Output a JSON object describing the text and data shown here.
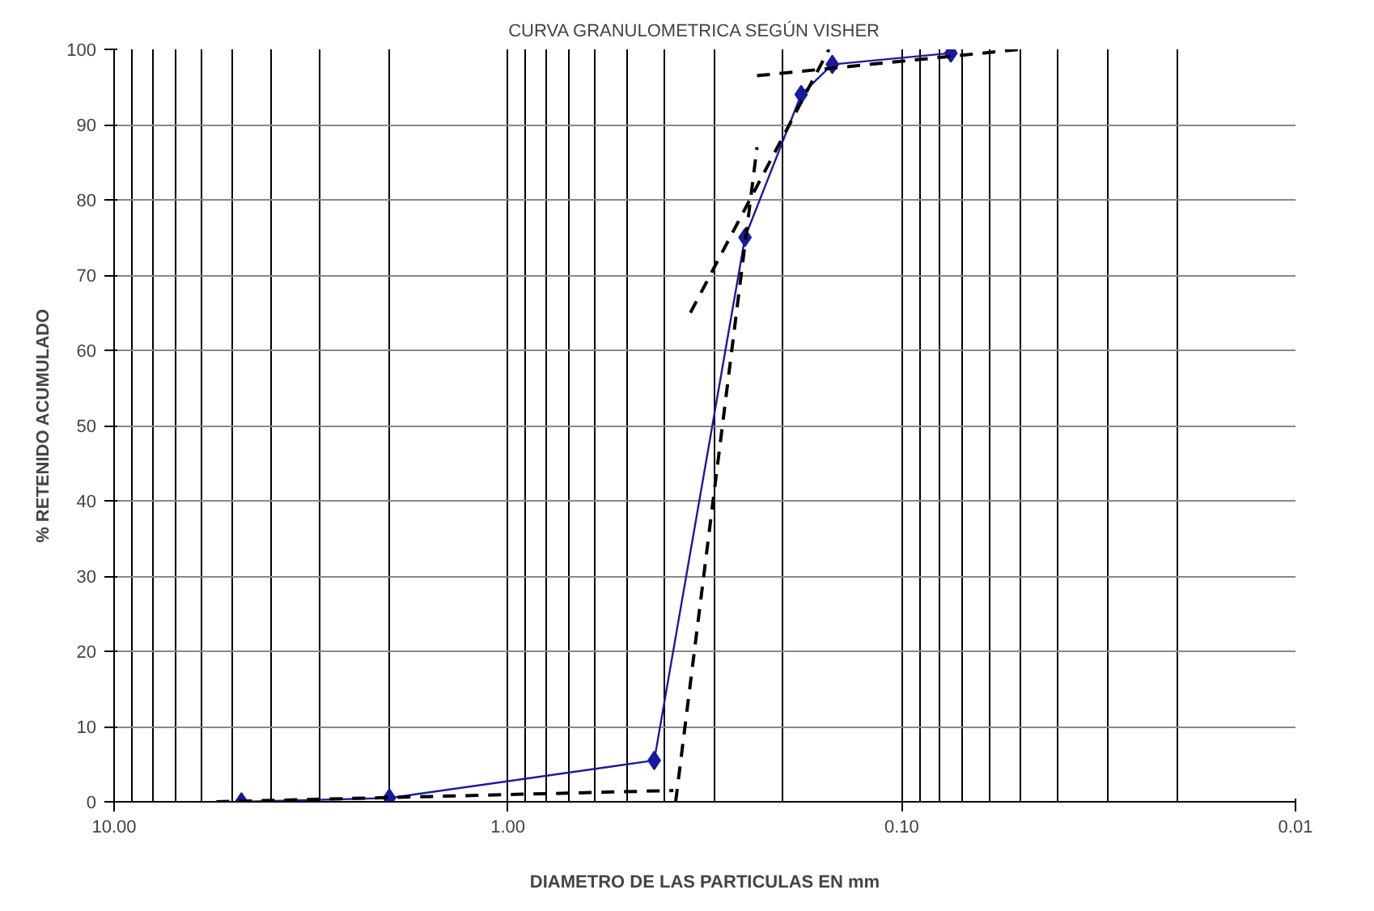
{
  "chart_data": {
    "type": "line",
    "title": "CURVA   GRANULOMETRICA SEGÚN   VISHER",
    "xlabel": "DIAMETRO DE LAS PARTICULAS EN mm",
    "ylabel": "% RETENIDO ACUMULADO",
    "log": "x",
    "xlim": [
      10,
      0.01
    ],
    "xticks": [
      {
        "value": 10,
        "label": "10.00"
      },
      {
        "value": 1,
        "label": "1.00"
      },
      {
        "value": 0.1,
        "label": "0.10"
      },
      {
        "value": 0.01,
        "label": "0.01"
      }
    ],
    "ylim": [
      0,
      100
    ],
    "yticks": [
      0,
      10,
      20,
      30,
      40,
      50,
      60,
      70,
      80,
      90,
      100
    ],
    "grid": true,
    "series": [
      {
        "color": "#1a1aa0",
        "marker": "diamond",
        "line_style": "solid",
        "x": [
          4.75,
          2.0,
          0.425,
          0.25,
          0.18,
          0.15,
          0.075
        ],
        "values": [
          0,
          0.5,
          5.5,
          75,
          94,
          98,
          99.5
        ]
      },
      {
        "color": "#000000",
        "marker": "none",
        "line_style": "dashed",
        "x": [
          5.5,
          0.38
        ],
        "values": [
          0,
          1.5
        ]
      },
      {
        "color": "#000000",
        "marker": "none",
        "line_style": "dashed",
        "x": [
          0.375,
          0.233
        ],
        "values": [
          0,
          87
        ]
      },
      {
        "color": "#000000",
        "marker": "none",
        "line_style": "dashed",
        "x": [
          0.344,
          0.153
        ],
        "values": [
          65,
          100
        ]
      },
      {
        "color": "#000000",
        "marker": "none",
        "line_style": "dashed",
        "x": [
          0.233,
          0.05
        ],
        "values": [
          96.5,
          100
        ]
      }
    ]
  }
}
